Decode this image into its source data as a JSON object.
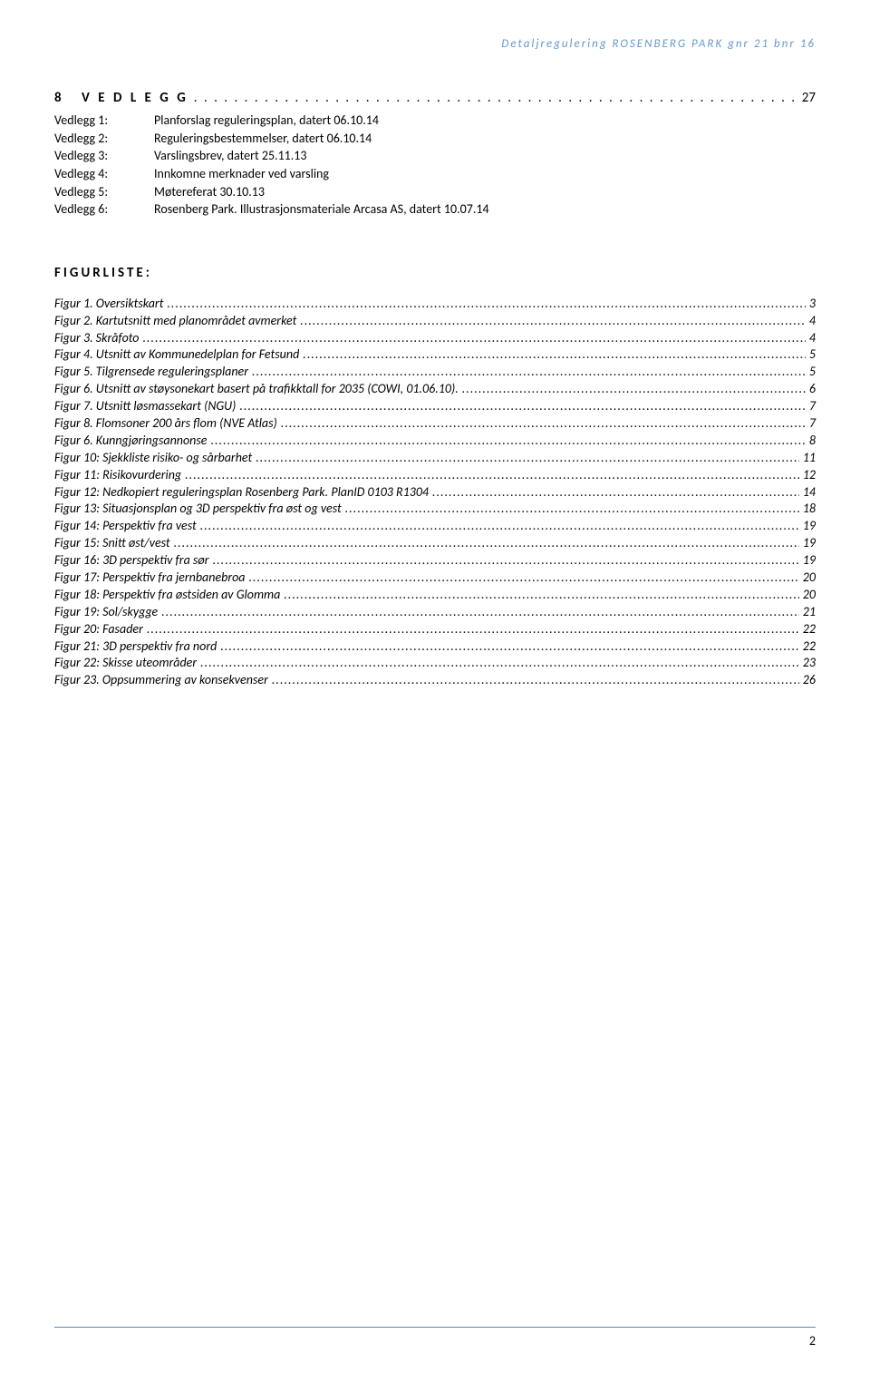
{
  "header": "Detaljregulering ROSENBERG PARK gnr 21 bnr 16",
  "section": {
    "number": "8",
    "title": "V E D L E G G",
    "page": "27"
  },
  "vedlegg": [
    {
      "label": "Vedlegg 1:",
      "text": "Planforslag reguleringsplan, datert 06.10.14"
    },
    {
      "label": "Vedlegg 2:",
      "text": "Reguleringsbestemmelser, datert 06.10.14"
    },
    {
      "label": "Vedlegg 3:",
      "text": "Varslingsbrev, datert 25.11.13"
    },
    {
      "label": "Vedlegg 4:",
      "text": "Innkomne merknader ved varsling"
    },
    {
      "label": "Vedlegg 5:",
      "text": "Møtereferat 30.10.13"
    },
    {
      "label": "Vedlegg 6:",
      "text": "Rosenberg Park. Illustrasjonsmateriale Arcasa AS, datert 10.07.14"
    }
  ],
  "figurliste_heading": "FIGURLISTE:",
  "figurer": [
    {
      "title": "Figur 1. Oversiktskart",
      "page": "3"
    },
    {
      "title": "Figur 2. Kartutsnitt med planområdet avmerket",
      "page": "4"
    },
    {
      "title": "Figur 3. Skråfoto",
      "page": "4"
    },
    {
      "title": "Figur 4. Utsnitt av Kommunedelplan for Fetsund",
      "page": "5"
    },
    {
      "title": "Figur 5. Tilgrensede reguleringsplaner",
      "page": "5"
    },
    {
      "title": "Figur 6. Utsnitt av støysonekart basert på trafikktall for 2035 (COWI, 01.06.10).",
      "page": "6"
    },
    {
      "title": "Figur 7. Utsnitt løsmassekart (NGU)",
      "page": "7"
    },
    {
      "title": "Figur 8. Flomsoner 200 års flom (NVE Atlas)",
      "page": "7"
    },
    {
      "title": "Figur 6. Kunngjøringsannonse",
      "page": "8"
    },
    {
      "title": "Figur 10: Sjekkliste risiko- og sårbarhet",
      "page": "11"
    },
    {
      "title": "Figur 11: Risikovurdering",
      "page": "12"
    },
    {
      "title": "Figur 12: Nedkopiert reguleringsplan Rosenberg Park. PlanID 0103 R1304",
      "page": "14"
    },
    {
      "title": "Figur 13: Situasjonsplan og 3D perspektiv fra øst og vest",
      "page": "18"
    },
    {
      "title": "Figur 14: Perspektiv fra vest",
      "page": "19"
    },
    {
      "title": "Figur 15: Snitt øst/vest",
      "page": "19"
    },
    {
      "title": "Figur 16: 3D perspektiv fra sør",
      "page": "19"
    },
    {
      "title": "Figur 17: Perspektiv fra jernbanebroa",
      "page": "20"
    },
    {
      "title": "Figur 18: Perspektiv fra østsiden av Glomma",
      "page": "20"
    },
    {
      "title": "Figur 19: Sol/skygge",
      "page": "21"
    },
    {
      "title": "Figur 20: Fasader",
      "page": "22"
    },
    {
      "title": "Figur 21: 3D perspektiv fra nord",
      "page": "22"
    },
    {
      "title": "Figur 22: Skisse uteområder",
      "page": "23"
    },
    {
      "title": "Figur 23. Oppsummering av konsekvenser",
      "page": "26"
    }
  ],
  "footer_page": "2",
  "dot_fill": ". . . . . . . . . . . . . . . . . . . . . . . . . . . . . . . . . . . . . . . . . . . . . . . . . . . . . . . . . . . . . . . . . . . . . . . . . . . . . . . . . . . . . . . . . . . . . . . . . . . . . . . . . . . . . . . . . . . . . . . . . . . . . . . . . . . . . . . . . . . . . . . . . . . . . . . . . . . . . . . . . . . . . . . . . . . . . . . . . . . . . . . . . . . . . . . . . . . . . . . . . . . . . . . . . . . . . . . . . . . .",
  "figur_dot_fill": "..........................................................................................................................................................................................................................................................................................................................................................."
}
